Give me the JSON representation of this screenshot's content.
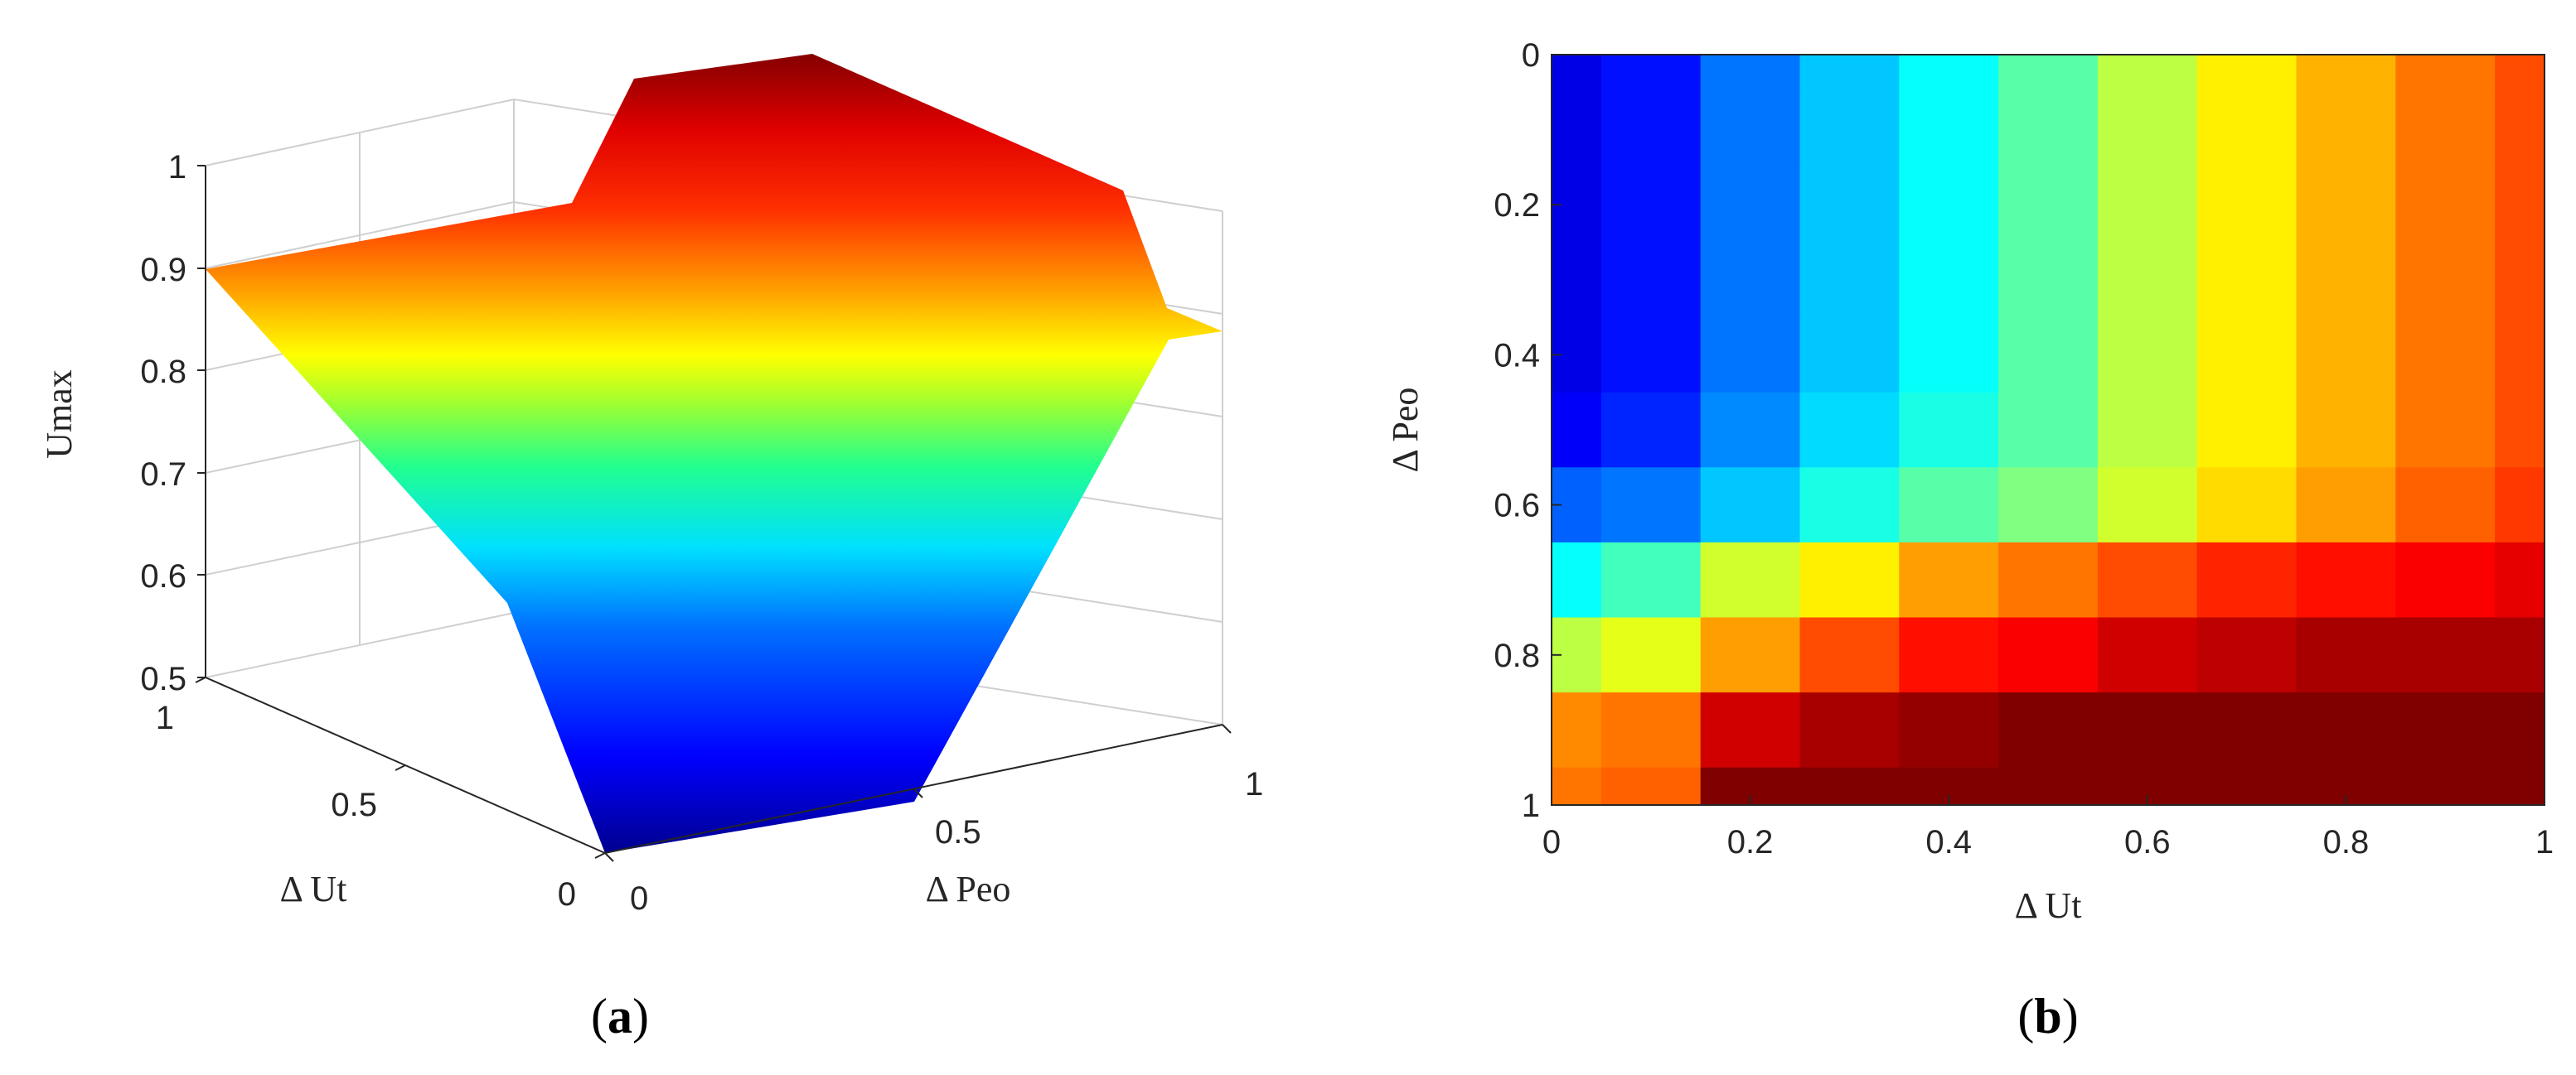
{
  "chart_data": [
    {
      "type": "surface",
      "panel_label": "a",
      "title": "",
      "xlabel": "Δ Peo",
      "ylabel": "Δ Ut",
      "zlabel": "Umax",
      "xlim": [
        0,
        1
      ],
      "ylim": [
        0,
        1
      ],
      "zlim": [
        0.5,
        1
      ],
      "xticks": [
        0,
        0.5,
        1
      ],
      "yticks": [
        0,
        0.5,
        1
      ],
      "zticks": [
        0.5,
        0.6,
        0.7,
        0.8,
        0.9,
        1
      ],
      "xticklabels": [
        "0",
        "0.5",
        "1"
      ],
      "yticklabels": [
        "0",
        "0.5",
        "1"
      ],
      "zticklabels": [
        "0.5",
        "0.6",
        "0.7",
        "0.8",
        "0.9",
        "1"
      ],
      "grid": true,
      "colormap": "jet",
      "approx_surface": {
        "dPeo": [
          0,
          0.5,
          1
        ],
        "dUt": [
          0,
          0.5,
          1
        ],
        "Umax": [
          [
            0.5,
            0.71,
            0.9
          ],
          [
            0.55,
            0.72,
            0.97
          ],
          [
            0.86,
            0.93,
            1.0
          ]
        ],
        "note_rows_index_dPeo": true
      }
    },
    {
      "type": "heatmap",
      "panel_label": "b",
      "title": "",
      "xlabel": "Δ Ut",
      "ylabel": "Δ Peo",
      "xlim": [
        0,
        1
      ],
      "ylim": [
        0,
        1
      ],
      "y_reversed": true,
      "xticks": [
        0,
        0.2,
        0.4,
        0.6,
        0.8,
        1
      ],
      "yticks": [
        0,
        0.2,
        0.4,
        0.6,
        0.8,
        1
      ],
      "xticklabels": [
        "0",
        "0.2",
        "0.4",
        "0.6",
        "0.8",
        "1"
      ],
      "yticklabels": [
        "0",
        "0.2",
        "0.4",
        "0.6",
        "0.8",
        "1"
      ],
      "colormap": "jet",
      "color_range": [
        0.5,
        1
      ],
      "x": [
        0,
        0.1,
        0.2,
        0.3,
        0.4,
        0.5,
        0.6,
        0.7,
        0.8,
        0.9,
        1
      ],
      "y": [
        0,
        0.1,
        0.2,
        0.3,
        0.4,
        0.5,
        0.6,
        0.7,
        0.8,
        0.9,
        1
      ],
      "values": [
        [
          0.55,
          0.57,
          0.62,
          0.66,
          0.69,
          0.73,
          0.78,
          0.82,
          0.85,
          0.88,
          0.9
        ],
        [
          0.55,
          0.57,
          0.62,
          0.66,
          0.69,
          0.73,
          0.78,
          0.82,
          0.85,
          0.88,
          0.9
        ],
        [
          0.55,
          0.57,
          0.62,
          0.66,
          0.69,
          0.73,
          0.78,
          0.82,
          0.85,
          0.88,
          0.9
        ],
        [
          0.55,
          0.57,
          0.62,
          0.66,
          0.69,
          0.73,
          0.78,
          0.82,
          0.85,
          0.88,
          0.9
        ],
        [
          0.55,
          0.57,
          0.62,
          0.66,
          0.69,
          0.73,
          0.78,
          0.82,
          0.85,
          0.88,
          0.9
        ],
        [
          0.56,
          0.58,
          0.63,
          0.67,
          0.7,
          0.73,
          0.78,
          0.82,
          0.85,
          0.88,
          0.9
        ],
        [
          0.61,
          0.62,
          0.66,
          0.7,
          0.73,
          0.75,
          0.79,
          0.83,
          0.86,
          0.89,
          0.91
        ],
        [
          0.69,
          0.72,
          0.79,
          0.82,
          0.86,
          0.88,
          0.9,
          0.92,
          0.93,
          0.94,
          0.95
        ],
        [
          0.78,
          0.8,
          0.86,
          0.9,
          0.93,
          0.94,
          0.96,
          0.97,
          0.98,
          0.98,
          0.98
        ],
        [
          0.87,
          0.88,
          0.96,
          0.98,
          0.99,
          1.0,
          1.0,
          1.0,
          1.0,
          1.0,
          1.0
        ],
        [
          0.88,
          0.89,
          1.0,
          1.0,
          1.0,
          1.0,
          1.0,
          1.0,
          1.0,
          1.0,
          1.0
        ]
      ]
    }
  ]
}
